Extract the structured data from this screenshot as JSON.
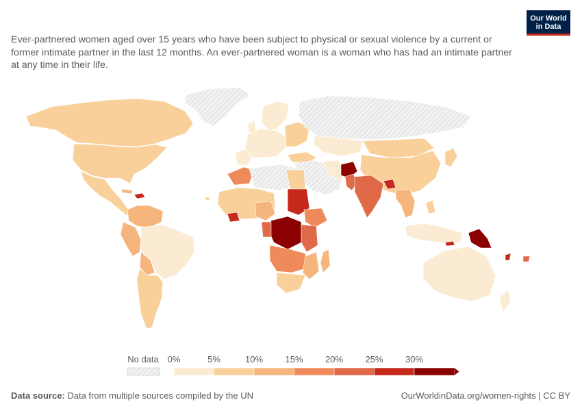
{
  "subtitle": "Ever-partnered women aged over 15 years who have been subject to physical or sexual violence by a current or former intimate partner in the last 12 months. An ever-partnered woman is a woman who has had an intimate partner at any time in their life.",
  "logo": {
    "line1": "Our World",
    "line2": "in Data"
  },
  "legend": {
    "no_data_label": "No data",
    "bins": [
      "0%",
      "5%",
      "10%",
      "15%",
      "20%",
      "25%",
      "30%"
    ],
    "colors": [
      "#fcebd3",
      "#f9d09a",
      "#f6b57d",
      "#ef8a5a",
      "#e06a48",
      "#c4291c",
      "#8b0000"
    ]
  },
  "colors": {
    "no_data": "#e6e6e6",
    "logo_bg": "#002147",
    "logo_accent": "#ce261e"
  },
  "footer": {
    "source_label": "Data source:",
    "source_text": " Data from multiple sources compiled by the UN",
    "link": "OurWorldinData.org/women-rights | CC BY"
  }
}
